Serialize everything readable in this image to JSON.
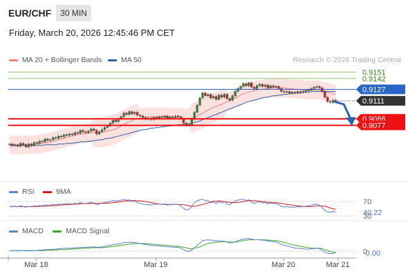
{
  "header": {
    "symbol": "EUR/CHF",
    "interval": "30 MIN",
    "timestamp": "Friday, March 20, 2026 12:45:46 PM CET",
    "credit": "Research © 2026 Trading Central"
  },
  "legend": {
    "main": [
      {
        "label": "MA 20 + Bollinger Bands",
        "color": "#f08080"
      },
      {
        "label": "MA 50",
        "color": "#2b5fa8"
      }
    ],
    "rsi": [
      {
        "label": "RSI",
        "color": "#5b7fd6"
      },
      {
        "label": "9MA",
        "color": "#e01010"
      }
    ],
    "macd": [
      {
        "label": "MACD",
        "color": "#5b7fd6"
      },
      {
        "label": "MACD Signal",
        "color": "#33aa22"
      }
    ]
  },
  "colors": {
    "resistance": "#8fc46a",
    "pivot": "#2966c8",
    "support": "#ee1111",
    "last": "#333333",
    "candle_up": "#2f8a2f",
    "candle_down": "#d02020",
    "bollinger_fill": "#fbdcdc",
    "arrow": "#2b63b0"
  },
  "chart_data": [
    {
      "type": "candlestick",
      "name": "price",
      "x_labels": [
        "Mar 18",
        "Mar 19",
        "Mar 20",
        "Mar 21"
      ],
      "ylim": [
        0.9,
        0.916
      ],
      "levels": [
        {
          "label": "0.9151",
          "value": 0.9151,
          "kind": "resistance"
        },
        {
          "label": "0.9142",
          "value": 0.9142,
          "kind": "resistance"
        },
        {
          "label": "0.9127",
          "value": 0.9127,
          "kind": "pivot"
        },
        {
          "label": "0.9111",
          "value": 0.9111,
          "kind": "last"
        },
        {
          "label": "0.9086",
          "value": 0.9086,
          "kind": "support"
        },
        {
          "label": "0.9077",
          "value": 0.9077,
          "kind": "support"
        }
      ],
      "close": [
        0.9051,
        0.9049,
        0.905,
        0.9048,
        0.9052,
        0.905,
        0.9047,
        0.9051,
        0.9049,
        0.9053,
        0.9052,
        0.9055,
        0.9054,
        0.9058,
        0.9056,
        0.9057,
        0.906,
        0.9059,
        0.9062,
        0.9061,
        0.9064,
        0.9063,
        0.9065,
        0.9064,
        0.9067,
        0.9066,
        0.907,
        0.9068,
        0.9067,
        0.9069,
        0.9072,
        0.907,
        0.9065,
        0.9068,
        0.9071,
        0.9074,
        0.9076,
        0.908,
        0.9084,
        0.9082,
        0.9086,
        0.9089,
        0.9094,
        0.9092,
        0.9096,
        0.9093,
        0.9095,
        0.9091,
        0.909,
        0.9088,
        0.9086,
        0.9087,
        0.9085,
        0.9088,
        0.9087,
        0.9089,
        0.9088,
        0.909,
        0.9087,
        0.9089,
        0.9088,
        0.909,
        0.9089,
        0.9086,
        0.908,
        0.9077,
        0.9078,
        0.9085,
        0.9095,
        0.9105,
        0.9115,
        0.9122,
        0.9118,
        0.912,
        0.9115,
        0.9117,
        0.9113,
        0.9119,
        0.9116,
        0.912,
        0.9114,
        0.9112,
        0.9118,
        0.9124,
        0.9128,
        0.9131,
        0.9135,
        0.9132,
        0.9136,
        0.913,
        0.9128,
        0.9132,
        0.9134,
        0.9131,
        0.9133,
        0.9129,
        0.9132,
        0.913,
        0.9131,
        0.9128,
        0.9124,
        0.9123,
        0.9124,
        0.9122,
        0.9123,
        0.9122,
        0.9124,
        0.9123,
        0.9124,
        0.9125,
        0.9126,
        0.9128,
        0.913,
        0.9131,
        0.9129,
        0.9124,
        0.9116,
        0.911,
        0.9109,
        0.9112,
        0.9111
      ],
      "ma20": [
        0.905,
        0.905,
        0.905,
        0.9049,
        0.905,
        0.905,
        0.905,
        0.905,
        0.905,
        0.905,
        0.9051,
        0.9051,
        0.9052,
        0.9053,
        0.9053,
        0.9054,
        0.9055,
        0.9056,
        0.9057,
        0.9058,
        0.9059,
        0.906,
        0.9061,
        0.9062,
        0.9063,
        0.9064,
        0.9065,
        0.9065,
        0.9066,
        0.9066,
        0.9067,
        0.9067,
        0.9067,
        0.9067,
        0.9068,
        0.9068,
        0.9069,
        0.907,
        0.9071,
        0.9072,
        0.9074,
        0.9076,
        0.9078,
        0.908,
        0.9082,
        0.9084,
        0.9085,
        0.9086,
        0.9087,
        0.9088,
        0.9088,
        0.9089,
        0.9089,
        0.9089,
        0.9089,
        0.9089,
        0.9089,
        0.9089,
        0.9089,
        0.9088,
        0.9088,
        0.9088,
        0.9088,
        0.9088,
        0.9087,
        0.9087,
        0.9087,
        0.9087,
        0.9088,
        0.909,
        0.9092,
        0.9094,
        0.9096,
        0.9098,
        0.91,
        0.9102,
        0.9103,
        0.9105,
        0.9106,
        0.9108,
        0.911,
        0.9111,
        0.9113,
        0.9115,
        0.9117,
        0.9119,
        0.9121,
        0.9122,
        0.9123,
        0.9124,
        0.9125,
        0.9126,
        0.9127,
        0.9127,
        0.9128,
        0.9128,
        0.9129,
        0.9129,
        0.9129,
        0.9129,
        0.9129,
        0.9129,
        0.9128,
        0.9128,
        0.9128,
        0.9127,
        0.9127,
        0.9127,
        0.9126,
        0.9126,
        0.9126,
        0.9126,
        0.9126,
        0.9126,
        0.9126,
        0.9125,
        0.9124,
        0.9123,
        0.9122,
        0.9121,
        0.912
      ],
      "ma50": [
        0.9049,
        0.9049,
        0.9049,
        0.9049,
        0.9049,
        0.9049,
        0.9049,
        0.9049,
        0.9049,
        0.9049,
        0.9049,
        0.9049,
        0.9049,
        0.905,
        0.905,
        0.905,
        0.905,
        0.905,
        0.9051,
        0.9051,
        0.9051,
        0.9052,
        0.9052,
        0.9052,
        0.9053,
        0.9053,
        0.9054,
        0.9054,
        0.9054,
        0.9055,
        0.9055,
        0.9056,
        0.9056,
        0.9057,
        0.9057,
        0.9058,
        0.9059,
        0.9059,
        0.906,
        0.9061,
        0.9062,
        0.9063,
        0.9064,
        0.9065,
        0.9066,
        0.9067,
        0.9068,
        0.9069,
        0.907,
        0.9071,
        0.9071,
        0.9072,
        0.9073,
        0.9073,
        0.9074,
        0.9074,
        0.9075,
        0.9075,
        0.9076,
        0.9076,
        0.9077,
        0.9077,
        0.9078,
        0.9078,
        0.9078,
        0.9079,
        0.9079,
        0.908,
        0.9081,
        0.9082,
        0.9083,
        0.9085,
        0.9086,
        0.9088,
        0.9089,
        0.9091,
        0.9092,
        0.9094,
        0.9095,
        0.9097,
        0.9098,
        0.91,
        0.9101,
        0.9103,
        0.9104,
        0.9106,
        0.9107,
        0.9109,
        0.911,
        0.9111,
        0.9112,
        0.9113,
        0.9114,
        0.9115,
        0.9116,
        0.9116,
        0.9117,
        0.9118,
        0.9118,
        0.9119,
        0.9119,
        0.912,
        0.912,
        0.9121,
        0.9121,
        0.9122,
        0.9122,
        0.9122,
        0.9123,
        0.9123,
        0.9123,
        0.9124,
        0.9124,
        0.9124,
        0.9124,
        0.9124,
        0.9124,
        0.9124,
        0.9124,
        0.9124,
        0.9124
      ],
      "bb_width": 0.0013,
      "arrow": {
        "from_index": 120,
        "from_value": 0.911,
        "mid_index": 123,
        "mid_value": 0.9106,
        "to_index": 126,
        "to_value": 0.908
      }
    },
    {
      "type": "line",
      "name": "RSI",
      "ylim": [
        20,
        80
      ],
      "levels": [
        {
          "label": "70",
          "value": 70
        },
        {
          "label": "40.22",
          "value": 40.22,
          "kind": "last"
        },
        {
          "label": "30",
          "value": 30
        }
      ],
      "series": [
        {
          "name": "RSI",
          "values": [
            57,
            56,
            57,
            55,
            58,
            56,
            54,
            57,
            55,
            58,
            57,
            59,
            58,
            61,
            59,
            60,
            62,
            61,
            63,
            62,
            64,
            63,
            64,
            63,
            65,
            64,
            67,
            65,
            64,
            66,
            68,
            66,
            61,
            63,
            66,
            68,
            69,
            71,
            73,
            71,
            73,
            74,
            76,
            74,
            75,
            71,
            72,
            67,
            65,
            63,
            61,
            62,
            60,
            63,
            62,
            64,
            62,
            64,
            60,
            62,
            61,
            63,
            62,
            58,
            51,
            47,
            48,
            57,
            67,
            72,
            75,
            77,
            72,
            73,
            67,
            69,
            64,
            70,
            66,
            70,
            63,
            61,
            67,
            72,
            74,
            76,
            77,
            73,
            75,
            68,
            65,
            68,
            70,
            66,
            68,
            63,
            66,
            64,
            65,
            61,
            56,
            55,
            56,
            54,
            55,
            54,
            56,
            55,
            56,
            57,
            58,
            60,
            62,
            63,
            60,
            53,
            45,
            41,
            40,
            43,
            40.22
          ]
        },
        {
          "name": "9MA",
          "values": [
            56,
            56,
            56,
            56,
            56,
            56,
            56,
            56,
            56,
            56,
            56,
            57,
            57,
            57,
            58,
            58,
            59,
            59,
            60,
            60,
            61,
            61,
            62,
            62,
            63,
            63,
            64,
            64,
            64,
            64,
            65,
            65,
            65,
            65,
            65,
            65,
            66,
            66,
            67,
            68,
            69,
            70,
            71,
            72,
            72,
            73,
            73,
            72,
            72,
            71,
            70,
            69,
            67,
            66,
            64,
            63,
            62,
            62,
            62,
            62,
            62,
            62,
            62,
            62,
            61,
            60,
            58,
            57,
            57,
            58,
            60,
            62,
            64,
            66,
            69,
            71,
            71,
            72,
            71,
            70,
            69,
            68,
            67,
            67,
            68,
            69,
            70,
            72,
            73,
            73,
            72,
            72,
            71,
            70,
            69,
            68,
            68,
            67,
            67,
            66,
            65,
            63,
            62,
            61,
            60,
            59,
            58,
            57,
            56,
            56,
            56,
            56,
            57,
            58,
            58,
            58,
            57,
            55,
            52,
            50,
            48
          ]
        }
      ]
    },
    {
      "type": "line",
      "name": "MACD",
      "ylim": [
        -0.0012,
        0.0032
      ],
      "levels": [
        {
          "label": "0",
          "value": 0
        },
        {
          "label": "-0.00",
          "value": -0.0004,
          "kind": "last"
        }
      ],
      "series": [
        {
          "name": "MACD",
          "values": [
            0.0001,
            0.0001,
            0.0001,
            0.0,
            0.0001,
            0.0001,
            0.0,
            0.0001,
            0.0,
            0.0001,
            0.0001,
            0.0002,
            0.0002,
            0.0003,
            0.0003,
            0.0003,
            0.0004,
            0.0004,
            0.0005,
            0.0005,
            0.0006,
            0.0006,
            0.0006,
            0.0006,
            0.0007,
            0.0007,
            0.0008,
            0.0008,
            0.0008,
            0.0008,
            0.0009,
            0.0009,
            0.0008,
            0.0008,
            0.0009,
            0.001,
            0.0011,
            0.0012,
            0.0014,
            0.0014,
            0.0015,
            0.0016,
            0.0018,
            0.0018,
            0.0019,
            0.0018,
            0.0018,
            0.0017,
            0.0016,
            0.0015,
            0.0014,
            0.0013,
            0.0012,
            0.0012,
            0.0011,
            0.0011,
            0.001,
            0.001,
            0.0009,
            0.0009,
            0.0008,
            0.0008,
            0.0008,
            0.0006,
            0.0003,
            0.0,
            -0.0001,
            0.0002,
            0.0007,
            0.0012,
            0.0017,
            0.0022,
            0.0023,
            0.0024,
            0.0023,
            0.0023,
            0.0021,
            0.0022,
            0.0021,
            0.0021,
            0.0019,
            0.0017,
            0.0018,
            0.002,
            0.0022,
            0.0024,
            0.0026,
            0.0026,
            0.0027,
            0.0025,
            0.0024,
            0.0024,
            0.0024,
            0.0023,
            0.0023,
            0.0021,
            0.0021,
            0.002,
            0.0019,
            0.0017,
            0.0014,
            0.0012,
            0.0011,
            0.0009,
            0.0008,
            0.0006,
            0.0006,
            0.0005,
            0.0005,
            0.0004,
            0.0004,
            0.0005,
            0.0005,
            0.0006,
            0.0005,
            0.0002,
            -0.0002,
            -0.0005,
            -0.0006,
            -0.0005,
            -0.0004
          ]
        },
        {
          "name": "MACD Signal",
          "values": [
            0.0001,
            0.0001,
            0.0001,
            0.0001,
            0.0001,
            0.0001,
            0.0001,
            0.0001,
            0.0001,
            0.0001,
            0.0001,
            0.0001,
            0.0001,
            0.0001,
            0.0002,
            0.0002,
            0.0002,
            0.0002,
            0.0003,
            0.0003,
            0.0003,
            0.0004,
            0.0004,
            0.0004,
            0.0005,
            0.0005,
            0.0005,
            0.0006,
            0.0006,
            0.0006,
            0.0007,
            0.0007,
            0.0007,
            0.0007,
            0.0007,
            0.0008,
            0.0008,
            0.0009,
            0.001,
            0.001,
            0.0011,
            0.0012,
            0.0013,
            0.0014,
            0.0015,
            0.0015,
            0.0016,
            0.0016,
            0.0016,
            0.0016,
            0.0016,
            0.0015,
            0.0015,
            0.0014,
            0.0014,
            0.0013,
            0.0013,
            0.0012,
            0.0012,
            0.0011,
            0.0011,
            0.001,
            0.001,
            0.0009,
            0.0008,
            0.0007,
            0.0005,
            0.0005,
            0.0006,
            0.0007,
            0.0009,
            0.0011,
            0.0014,
            0.0016,
            0.0017,
            0.0018,
            0.0019,
            0.0019,
            0.002,
            0.002,
            0.002,
            0.002,
            0.0019,
            0.0019,
            0.002,
            0.0021,
            0.0022,
            0.0023,
            0.0024,
            0.0024,
            0.0024,
            0.0024,
            0.0024,
            0.0024,
            0.0024,
            0.0023,
            0.0023,
            0.0022,
            0.0022,
            0.0021,
            0.002,
            0.0018,
            0.0017,
            0.0015,
            0.0014,
            0.0012,
            0.0011,
            0.001,
            0.0009,
            0.0008,
            0.0007,
            0.0006,
            0.0006,
            0.0006,
            0.0006,
            0.0005,
            0.0003,
            0.0001,
            -0.0001,
            -0.0002,
            -0.0003
          ]
        }
      ]
    }
  ]
}
